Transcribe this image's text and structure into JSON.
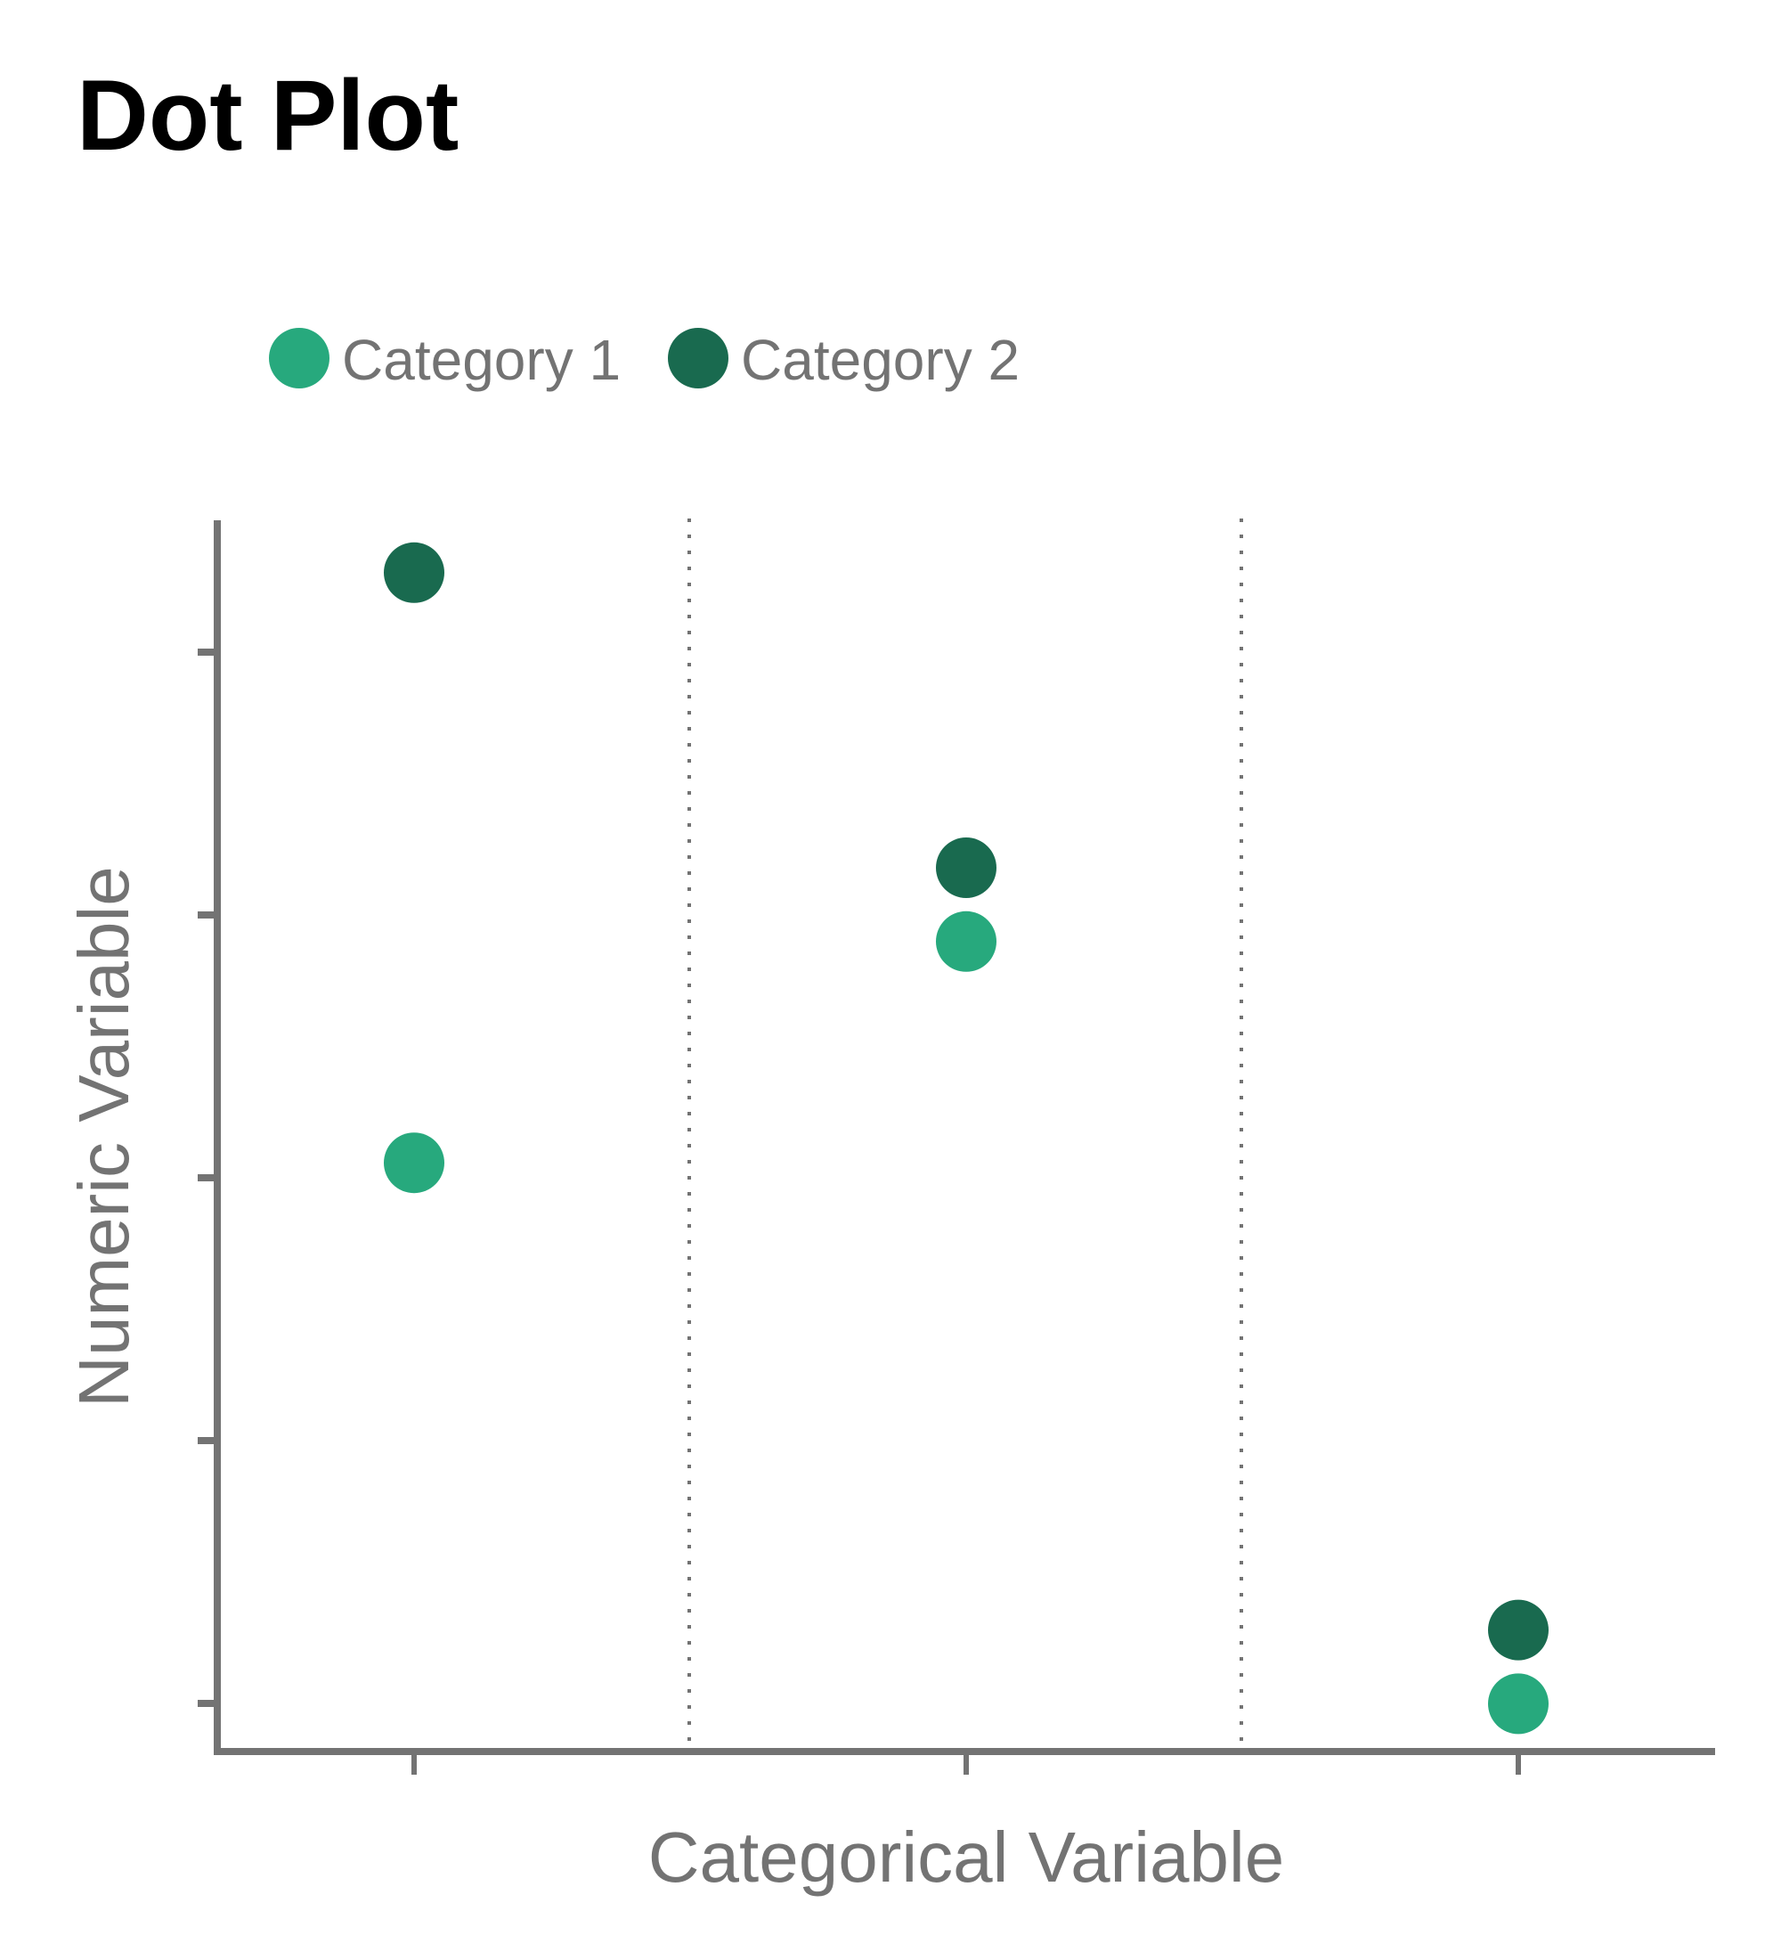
{
  "chart_data": {
    "type": "scatter",
    "title": "Dot Plot",
    "xlabel": "Categorical Variable",
    "ylabel": "Numeric Variable",
    "categories": [
      "",
      "",
      ""
    ],
    "ylim": [
      0,
      100
    ],
    "grid": false,
    "legend_position": "top-left",
    "series": [
      {
        "name": "Category 1",
        "color": "#27a97d",
        "values": [
          46,
          64,
          2
        ]
      },
      {
        "name": "Category 2",
        "color": "#196a4f",
        "values": [
          94,
          70,
          8
        ]
      }
    ]
  }
}
